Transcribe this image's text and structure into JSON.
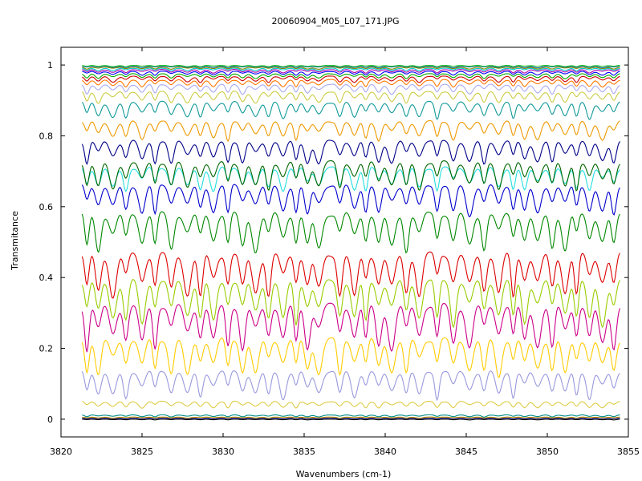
{
  "chart_data": {
    "type": "line",
    "title": "20060904_M05_L07_171.JPG",
    "xlabel": "Wavenumbers (cm-1)",
    "ylabel": "Transmitance",
    "xlim": [
      3820,
      3855
    ],
    "ylim": [
      -0.05,
      1.05
    ],
    "x_ticks": [
      "3820",
      "3825",
      "3830",
      "3835",
      "3840",
      "3845",
      "3850",
      "3855"
    ],
    "y_ticks": [
      "0",
      "0.2",
      "0.4",
      "0.6",
      "0.8",
      "1"
    ],
    "grid": false,
    "x_range_of_data": [
      3821.3,
      3854.5
    ],
    "absorption_lines_cm1": [
      3821.6,
      3822.3,
      3823.2,
      3824.0,
      3825.0,
      3825.8,
      3826.8,
      3827.8,
      3828.6,
      3829.4,
      3830.3,
      3831.2,
      3832.0,
      3832.8,
      3833.7,
      3834.5,
      3835.2,
      3835.9,
      3837.2,
      3838.1,
      3838.8,
      3839.6,
      3840.4,
      3841.3,
      3842.1,
      3843.2,
      3844.2,
      3845.2,
      3846.1,
      3847.0,
      3847.9,
      3848.6,
      3849.4,
      3850.3,
      3851.1,
      3851.8,
      3852.6,
      3853.4,
      3854.1
    ],
    "series": [
      {
        "color": "#000000",
        "baseline": 0.0,
        "amplitude": 0.002
      },
      {
        "color": "#00008b",
        "baseline": 0.003,
        "amplitude": 0.002
      },
      {
        "color": "#cc9900",
        "baseline": 0.006,
        "amplitude": 0.003
      },
      {
        "color": "#008b8b",
        "baseline": 0.012,
        "amplitude": 0.006
      },
      {
        "color": "#ddcc44",
        "baseline": 0.05,
        "amplitude": 0.02
      },
      {
        "color": "#9999dd",
        "baseline": 0.135,
        "amplitude": 0.08
      },
      {
        "color": "#ffcc00",
        "baseline": 0.225,
        "amplitude": 0.11
      },
      {
        "color": "#cc0088",
        "baseline": 0.32,
        "amplitude": 0.13
      },
      {
        "color": "#99cc00",
        "baseline": 0.39,
        "amplitude": 0.13
      },
      {
        "color": "#dd0000",
        "baseline": 0.465,
        "amplitude": 0.13
      },
      {
        "color": "#008800",
        "baseline": 0.58,
        "amplitude": 0.11
      },
      {
        "color": "#0000cc",
        "baseline": 0.66,
        "amplitude": 0.09
      },
      {
        "color": "#22dddd",
        "baseline": 0.71,
        "amplitude": 0.07
      },
      {
        "color": "#006600",
        "baseline": 0.725,
        "amplitude": 0.08
      },
      {
        "color": "#000088",
        "baseline": 0.785,
        "amplitude": 0.07
      },
      {
        "color": "#ee9900",
        "baseline": 0.84,
        "amplitude": 0.055
      },
      {
        "color": "#119999",
        "baseline": 0.895,
        "amplitude": 0.05
      },
      {
        "color": "#cccc44",
        "baseline": 0.925,
        "amplitude": 0.035
      },
      {
        "color": "#aaaaee",
        "baseline": 0.945,
        "amplitude": 0.028
      },
      {
        "color": "#ff7700",
        "baseline": 0.958,
        "amplitude": 0.022
      },
      {
        "color": "#cc0000",
        "baseline": 0.968,
        "amplitude": 0.018
      },
      {
        "color": "#00aa00",
        "baseline": 0.975,
        "amplitude": 0.014
      },
      {
        "color": "#0000ff",
        "baseline": 0.982,
        "amplitude": 0.012
      },
      {
        "color": "#aa00aa",
        "baseline": 0.987,
        "amplitude": 0.01
      },
      {
        "color": "#00cccc",
        "baseline": 0.991,
        "amplitude": 0.008
      },
      {
        "color": "#888800",
        "baseline": 0.994,
        "amplitude": 0.006
      },
      {
        "color": "#006699",
        "baseline": 0.997,
        "amplitude": 0.005
      },
      {
        "color": "#33cc33",
        "baseline": 0.999,
        "amplitude": 0.004
      }
    ]
  }
}
